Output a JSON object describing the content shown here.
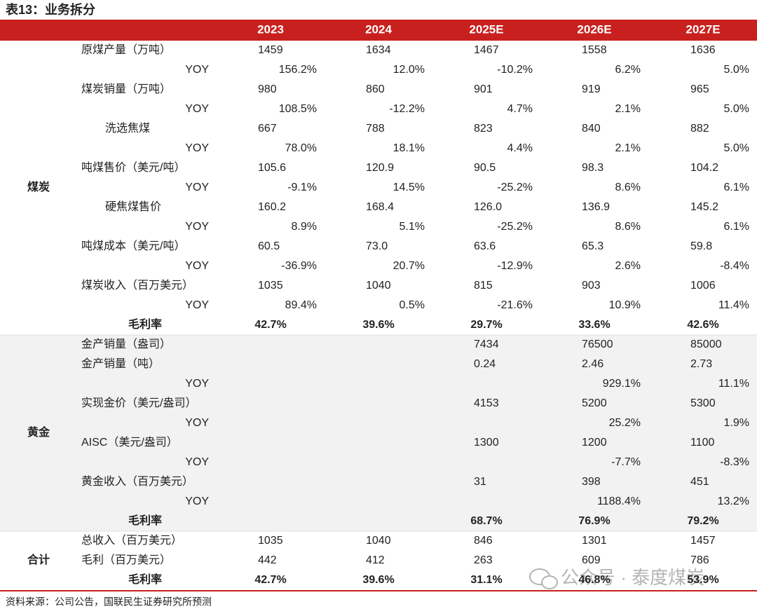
{
  "title": "表13：业务拆分",
  "table": {
    "columns": [
      "2023",
      "2024",
      "2025E",
      "2026E",
      "2027E"
    ],
    "sections": [
      {
        "name": "煤炭",
        "rows": [
          {
            "label": "原煤产量（万吨）",
            "values": [
              "1459",
              "1634",
              "1467",
              "1558",
              "1636"
            ],
            "yoy": {
              "label": "YOY",
              "values": [
                "156.2%",
                "12.0%",
                "-10.2%",
                "6.2%",
                "5.0%"
              ]
            }
          },
          {
            "label": "煤炭销量（万吨）",
            "values": [
              "980",
              "860",
              "901",
              "919",
              "965"
            ],
            "yoy": {
              "label": "YOY",
              "values": [
                "108.5%",
                "-12.2%",
                "4.7%",
                "2.1%",
                "5.0%"
              ]
            },
            "sub": [
              {
                "label": "洗选焦煤",
                "values": [
                  "667",
                  "788",
                  "823",
                  "840",
                  "882"
                ],
                "yoy": {
                  "label": "YOY",
                  "values": [
                    "78.0%",
                    "18.1%",
                    "4.4%",
                    "2.1%",
                    "5.0%"
                  ]
                }
              }
            ]
          },
          {
            "label": "吨煤售价（美元/吨）",
            "values": [
              "105.6",
              "120.9",
              "90.5",
              "98.3",
              "104.2"
            ],
            "yoy": {
              "label": "YOY",
              "values": [
                "-9.1%",
                "14.5%",
                "-25.2%",
                "8.6%",
                "6.1%"
              ]
            },
            "sub": [
              {
                "label": "硬焦煤售价",
                "values": [
                  "160.2",
                  "168.4",
                  "126.0",
                  "136.9",
                  "145.2"
                ],
                "yoy": {
                  "label": "YOY",
                  "values": [
                    "8.9%",
                    "5.1%",
                    "-25.2%",
                    "8.6%",
                    "6.1%"
                  ]
                }
              }
            ]
          },
          {
            "label": "吨煤成本（美元/吨）",
            "values": [
              "60.5",
              "73.0",
              "63.6",
              "65.3",
              "59.8"
            ],
            "yoy": {
              "label": "YOY",
              "values": [
                "-36.9%",
                "20.7%",
                "-12.9%",
                "2.6%",
                "-8.4%"
              ]
            }
          },
          {
            "label": "煤炭收入（百万美元）",
            "values": [
              "1035",
              "1040",
              "815",
              "903",
              "1006"
            ],
            "yoy": {
              "label": "YOY",
              "values": [
                "89.4%",
                "0.5%",
                "-21.6%",
                "10.9%",
                "11.4%"
              ]
            }
          }
        ],
        "margin": {
          "label": "毛利率",
          "values": [
            "42.7%",
            "39.6%",
            "29.7%",
            "33.6%",
            "42.6%"
          ]
        }
      },
      {
        "name": "黄金",
        "rows": [
          {
            "label": "金产销量（盎司）",
            "values": [
              null,
              null,
              "7434",
              "76500",
              "85000"
            ]
          },
          {
            "label": "金产销量（吨）",
            "values": [
              null,
              null,
              "0.24",
              "2.46",
              "2.73"
            ],
            "yoy": {
              "label": "YOY",
              "values": [
                null,
                null,
                null,
                "929.1%",
                "11.1%"
              ]
            }
          },
          {
            "label": "实现金价（美元/盎司）",
            "values": [
              null,
              null,
              "4153",
              "5200",
              "5300"
            ],
            "yoy": {
              "label": "YOY",
              "values": [
                null,
                null,
                null,
                "25.2%",
                "1.9%"
              ]
            }
          },
          {
            "label": "AISC（美元/盎司）",
            "values": [
              null,
              null,
              "1300",
              "1200",
              "1100"
            ],
            "yoy": {
              "label": "YOY",
              "values": [
                null,
                null,
                null,
                "-7.7%",
                "-8.3%"
              ]
            }
          },
          {
            "label": "黄金收入（百万美元）",
            "values": [
              null,
              null,
              "31",
              "398",
              "451"
            ],
            "yoy": {
              "label": "YOY",
              "values": [
                null,
                null,
                null,
                "1188.4%",
                "13.2%"
              ]
            }
          }
        ],
        "margin": {
          "label": "毛利率",
          "values": [
            null,
            null,
            "68.7%",
            "76.9%",
            "79.2%"
          ]
        }
      },
      {
        "name": "合计",
        "rows": [
          {
            "label": "总收入（百万美元）",
            "values": [
              "1035",
              "1040",
              "846",
              "1301",
              "1457"
            ]
          },
          {
            "label": "毛利（百万美元）",
            "values": [
              "442",
              "412",
              "263",
              "609",
              "786"
            ]
          }
        ],
        "margin": {
          "label": "毛利率",
          "values": [
            "42.7%",
            "39.6%",
            "31.1%",
            "46.8%",
            "53.9%"
          ]
        }
      }
    ]
  },
  "source": "资料来源：公司公告，国联民生证券研究所预测",
  "watermark": "公众号 · 泰度煤炭"
}
